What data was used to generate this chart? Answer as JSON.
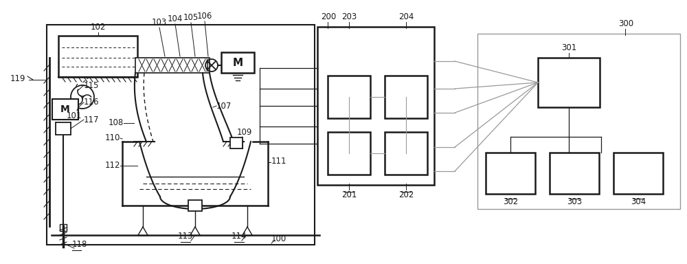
{
  "bg_color": "#ffffff",
  "lc": "#1a1a1a",
  "gray": "#999999",
  "fs": 8.5
}
